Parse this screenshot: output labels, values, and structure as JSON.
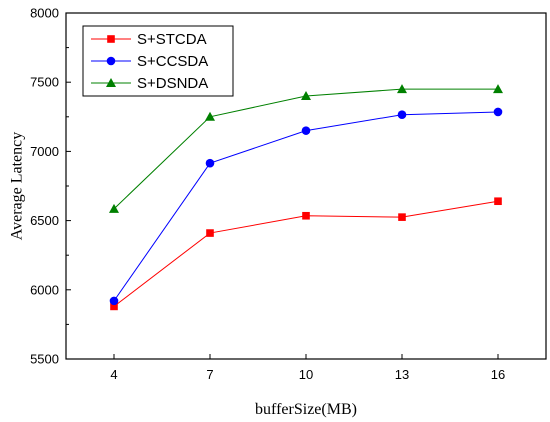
{
  "chart_data": {
    "type": "line",
    "title": "",
    "xlabel": "bufferSize(MB)",
    "ylabel": "Average Latency",
    "categories": [
      "4",
      "7",
      "10",
      "13",
      "16"
    ],
    "x": [
      4,
      7,
      10,
      13,
      16
    ],
    "xlim": [
      2.5,
      17.5
    ],
    "ylim": [
      5500,
      8000
    ],
    "yticks": [
      5500,
      6000,
      6500,
      7000,
      7500,
      8000
    ],
    "grid": false,
    "legend_position": "top-left",
    "series": [
      {
        "name": "S+STCDA",
        "color": "#ff0000",
        "marker": "square",
        "values": [
          5880,
          6410,
          6535,
          6525,
          6640
        ]
      },
      {
        "name": "S+CCSDA",
        "color": "#0000ff",
        "marker": "circle",
        "values": [
          5920,
          6915,
          7150,
          7265,
          7285
        ]
      },
      {
        "name": "S+DSNDA",
        "color": "#008000",
        "marker": "triangle",
        "values": [
          6585,
          7250,
          7400,
          7450,
          7450
        ]
      }
    ]
  }
}
